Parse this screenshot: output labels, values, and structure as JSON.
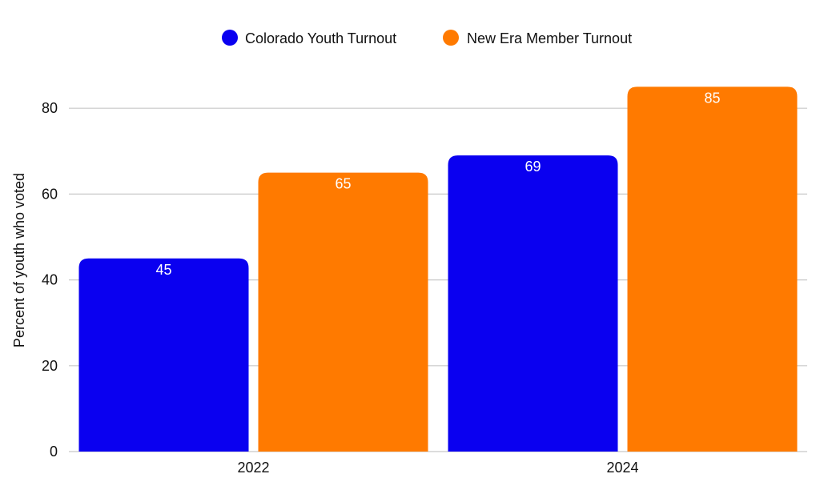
{
  "chart_data": {
    "type": "bar",
    "categories": [
      "2022",
      "2024"
    ],
    "series": [
      {
        "name": "Colorado Youth Turnout",
        "values": [
          45,
          69
        ],
        "color": "#0a00f0"
      },
      {
        "name": "New Era Member Turnout",
        "values": [
          65,
          85
        ],
        "color": "#ff7a00"
      }
    ],
    "title": "",
    "xlabel": "",
    "ylabel": "Percent of youth who voted",
    "ylim": [
      0,
      85
    ],
    "yticks": [
      0,
      20,
      40,
      60,
      80
    ],
    "grid": true,
    "legend_position": "top-center"
  }
}
